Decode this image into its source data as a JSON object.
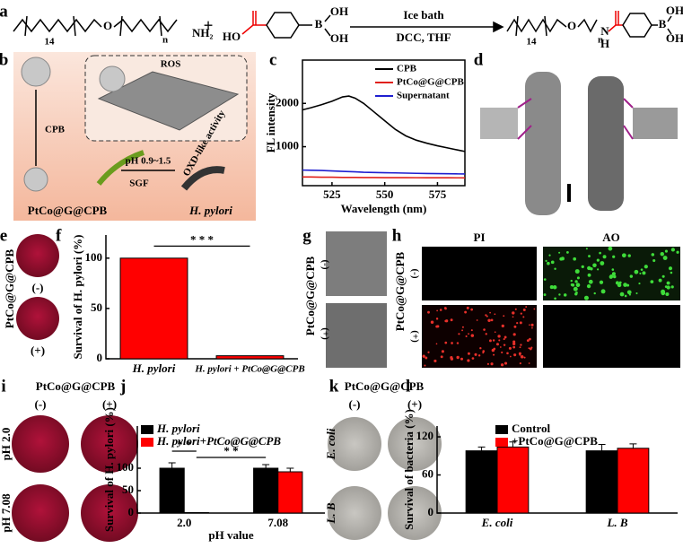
{
  "panel_a": {
    "label": "a",
    "sub_14": "14",
    "sub_n": "n",
    "oxygen": "O",
    "amine": "NH₂",
    "plus": "+",
    "acid_ho": "HO",
    "boron": "B",
    "oh_top": "OH",
    "oh_bottom": "OH",
    "condition_top": "Ice bath",
    "condition_bottom": "DCC, THF",
    "product_14": "14",
    "product_n": "n",
    "product_oxygen": "O",
    "amide_n": "N",
    "amide_h": "H",
    "product_boron": "B",
    "product_oh_top": "OH",
    "product_oh_bottom": "OH"
  },
  "panel_b": {
    "label": "b",
    "cpb": "CPB",
    "ros": "ROS",
    "ph": "pH 0.9~1.5",
    "sgf": "SGF",
    "activity": "OXD-like activity",
    "nanozyme": "PtCo@G@CPB",
    "bacterium": "H. pylori"
  },
  "panel_d": {
    "label": "d"
  },
  "panel_e": {
    "label": "e",
    "sample": "PtCo@G@CPB",
    "minus": "(-)",
    "plus": "(+)"
  },
  "panel_g": {
    "label": "g",
    "sample": "PtCo@G@CPB",
    "minus": "(-)",
    "plus": "(+)"
  },
  "panel_h": {
    "label": "h",
    "pi": "PI",
    "ao": "AO",
    "sample": "PtCo@G@CPB",
    "minus": "(-)",
    "plus": "(+)"
  },
  "panel_i": {
    "label": "i",
    "sample": "PtCo@G@CPB",
    "minus": "(-)",
    "plus": "(+)",
    "ph_low": "pH 2.0",
    "ph_high": "pH 7.08"
  },
  "panel_k": {
    "label": "k",
    "sample": "PtCo@G@CPB",
    "minus": "(-)",
    "plus": "(+)",
    "ecoli": "E. coli",
    "lb": "L. B"
  },
  "chart_data": [
    {
      "type": "line",
      "label": "c",
      "xlabel": "Wavelength (nm)",
      "ylabel": "FL intensity",
      "x": [
        511,
        515,
        520,
        525,
        530,
        533,
        536,
        540,
        545,
        550,
        555,
        560,
        565,
        570,
        575,
        580,
        585,
        588
      ],
      "series": [
        {
          "name": "CPB",
          "color": "#000000",
          "values": [
            1850,
            1900,
            1970,
            2050,
            2150,
            2170,
            2120,
            2000,
            1800,
            1600,
            1400,
            1250,
            1150,
            1080,
            1020,
            970,
            920,
            890
          ]
        },
        {
          "name": "PtCo@G@CPB",
          "color": "#e0201b",
          "values": [
            300,
            300,
            295,
            295,
            290,
            290,
            290,
            288,
            287,
            286,
            285,
            285,
            284,
            283,
            283,
            282,
            281,
            280
          ]
        },
        {
          "name": "Supernatant",
          "color": "#1f1fd0",
          "values": [
            460,
            455,
            450,
            440,
            430,
            425,
            420,
            410,
            405,
            400,
            395,
            390,
            385,
            380,
            378,
            375,
            372,
            370
          ]
        }
      ],
      "xlim": [
        511,
        588
      ],
      "xticks": [
        525,
        550,
        575
      ],
      "ylim": [
        100,
        3000
      ],
      "yticks": [
        1000,
        2000
      ],
      "legend": "upper right"
    },
    {
      "type": "bar",
      "label": "f",
      "ylabel": "Survival of H. pylori (%)",
      "categories": [
        "H. pylori",
        "H. pylori + PtCo@G@CPB"
      ],
      "values": [
        100,
        3
      ],
      "color": "#ff0000",
      "ylim": [
        0,
        123
      ],
      "yticks": [
        0,
        50,
        100
      ],
      "annotations": [
        "* * *"
      ]
    },
    {
      "type": "bar",
      "label": "j",
      "ylabel": "Survival of H. pylori (%)",
      "xlabel": "pH value",
      "categories": [
        "2.0",
        "7.08"
      ],
      "series": [
        {
          "name": "H. pylori",
          "color": "#000000",
          "values": [
            100,
            100
          ],
          "errors": [
            12,
            8
          ]
        },
        {
          "name": "H. pylori+PtCo@G@CPB",
          "color": "#ff0000",
          "values": [
            1,
            92
          ],
          "errors": [
            0,
            8
          ]
        }
      ],
      "ylim": [
        0,
        194
      ],
      "yticks": [
        0,
        50,
        100
      ],
      "legend": "upper left",
      "annotations": [
        "* *",
        "* *"
      ]
    },
    {
      "type": "bar",
      "label": "l",
      "ylabel": "Survival of bacteria (%)",
      "categories": [
        "E. coli",
        "L. B"
      ],
      "series": [
        {
          "name": "Control",
          "color": "#000000",
          "values": [
            98,
            98
          ],
          "errors": [
            6,
            10
          ]
        },
        {
          "name": "+PtCo@G@CPB",
          "color": "#ff0000",
          "values": [
            104,
            102
          ],
          "errors": [
            8,
            7
          ]
        }
      ],
      "ylim": [
        0,
        137
      ],
      "yticks": [
        0,
        60,
        120
      ],
      "legend": "upper center"
    }
  ]
}
